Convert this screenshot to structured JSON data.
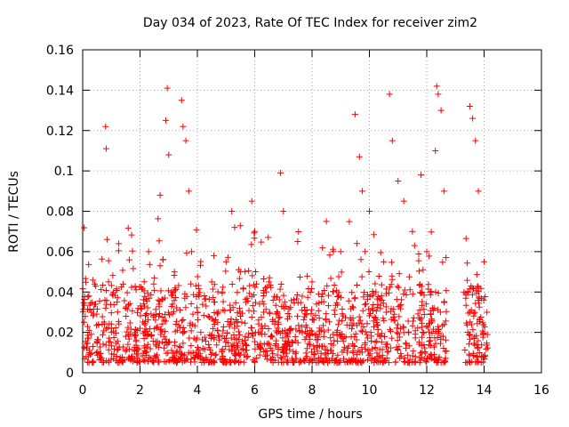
{
  "chart_data": {
    "type": "scatter",
    "title": "Day 034 of 2023, Rate Of TEC Index for receiver zim2",
    "xlabel": "GPS time / hours",
    "ylabel": "ROTI / TECUs",
    "xlim": [
      0,
      16
    ],
    "ylim": [
      0,
      0.16
    ],
    "x_ticks": [
      0,
      2,
      4,
      6,
      8,
      10,
      12,
      14,
      16
    ],
    "y_ticks": [
      0,
      0.02,
      0.04,
      0.06,
      0.08,
      0.1,
      0.12,
      0.14,
      0.16
    ],
    "x_tick_labels": [
      "0",
      "2",
      "4",
      "6",
      "8",
      "10",
      "12",
      "14",
      "16"
    ],
    "y_tick_labels": [
      "0",
      "0.02",
      "0.04",
      "0.06",
      "0.08",
      "0.1",
      "0.12",
      "0.14",
      "0.16"
    ],
    "grid": true,
    "grid_style": "dotted",
    "marker": "+",
    "color": "#ff0000",
    "data_gaps_hours": [
      [
        12.7,
        13.3
      ]
    ],
    "x": [
      0.05,
      0.15,
      0.3,
      0.5,
      0.8,
      0.82,
      0.85,
      0.9,
      1.0,
      1.2,
      1.5,
      2.0,
      2.3,
      2.5,
      2.7,
      2.9,
      2.95,
      3.0,
      3.2,
      3.45,
      3.5,
      3.6,
      3.7,
      3.8,
      4.0,
      4.5,
      5.0,
      5.2,
      5.3,
      5.5,
      5.9,
      6.0,
      6.5,
      6.9,
      7.0,
      7.5,
      8.0,
      8.5,
      9.0,
      9.5,
      9.65,
      9.75,
      9.85,
      10.0,
      10.5,
      10.7,
      10.8,
      11.0,
      11.2,
      11.5,
      11.8,
      12.0,
      12.3,
      12.35,
      12.4,
      12.5,
      12.6,
      13.3,
      13.5,
      13.6,
      13.7,
      13.8,
      14.0,
      14.1
    ],
    "y": [
      0.025,
      0.012,
      0.03,
      0.015,
      0.122,
      0.111,
      0.066,
      0.045,
      0.02,
      0.035,
      0.018,
      0.022,
      0.06,
      0.047,
      0.088,
      0.125,
      0.141,
      0.108,
      0.05,
      0.135,
      0.122,
      0.115,
      0.09,
      0.06,
      0.03,
      0.045,
      0.055,
      0.08,
      0.072,
      0.05,
      0.085,
      0.07,
      0.045,
      0.099,
      0.08,
      0.065,
      0.045,
      0.075,
      0.06,
      0.128,
      0.107,
      0.09,
      0.06,
      0.08,
      0.055,
      0.138,
      0.115,
      0.095,
      0.085,
      0.07,
      0.098,
      0.06,
      0.11,
      0.142,
      0.138,
      0.13,
      0.09,
      0.04,
      0.132,
      0.126,
      0.115,
      0.09,
      0.055,
      0.03
    ],
    "noise_floor_range": [
      0.005,
      0.035
    ]
  }
}
